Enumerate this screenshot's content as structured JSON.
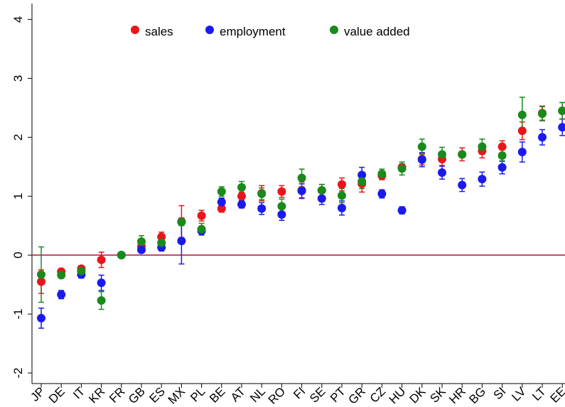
{
  "chart_data": {
    "type": "errorbar-scatter",
    "categories": [
      "JP",
      "DE",
      "IT",
      "KR",
      "FR",
      "GB",
      "ES",
      "MX",
      "PL",
      "BE",
      "AT",
      "NL",
      "RO",
      "FI",
      "SE",
      "PT",
      "GR",
      "CZ",
      "HU",
      "DK",
      "SK",
      "HR",
      "BG",
      "SI",
      "LV",
      "LT",
      "EE"
    ],
    "series": [
      {
        "name": "sales",
        "color": "#e8161b",
        "values": [
          -0.45,
          -0.28,
          -0.23,
          -0.08,
          0,
          0.15,
          0.31,
          0.57,
          0.67,
          0.79,
          1.0,
          1.05,
          1.08,
          1.1,
          1.1,
          1.2,
          1.21,
          1.35,
          1.49,
          1.63,
          1.63,
          1.71,
          1.77,
          1.84,
          2.11,
          2.41,
          2.45
        ],
        "errors": [
          0.2,
          0.05,
          0.05,
          0.13,
          0,
          0.05,
          0.08,
          0.27,
          0.09,
          0.06,
          0.07,
          0.13,
          0.1,
          0.14,
          0.1,
          0.11,
          0.14,
          0.07,
          0.06,
          0.1,
          0.11,
          0.11,
          0.12,
          0.1,
          0.15,
          0.12,
          0.14
        ]
      },
      {
        "name": "employment",
        "color": "#1a1aee",
        "values": [
          -1.07,
          -0.67,
          -0.33,
          -0.47,
          0,
          0.09,
          0.13,
          0.24,
          0.41,
          0.9,
          0.86,
          0.79,
          0.69,
          1.09,
          0.96,
          0.8,
          1.36,
          1.04,
          0.76,
          1.62,
          1.4,
          1.19,
          1.29,
          1.49,
          1.75,
          2.0,
          2.17
        ],
        "errors": [
          0.17,
          0.07,
          0.06,
          0.13,
          0,
          0.05,
          0.06,
          0.39,
          0.07,
          0.07,
          0.06,
          0.1,
          0.1,
          0.12,
          0.1,
          0.12,
          0.13,
          0.07,
          0.06,
          0.12,
          0.11,
          0.11,
          0.12,
          0.11,
          0.17,
          0.13,
          0.14
        ]
      },
      {
        "name": "value added",
        "color": "#1a8a1a",
        "values": [
          -0.33,
          -0.34,
          -0.27,
          -0.77,
          0,
          0.23,
          0.21,
          0.56,
          0.44,
          1.08,
          1.15,
          1.04,
          0.83,
          1.31,
          1.1,
          1.01,
          1.25,
          1.38,
          1.47,
          1.84,
          1.71,
          1.71,
          1.84,
          1.69,
          2.38,
          2.4,
          2.45
        ],
        "errors": [
          0.47,
          0.05,
          0.05,
          0.15,
          0,
          0.1,
          0.06,
          0.06,
          0.1,
          0.08,
          0.1,
          0.1,
          0.12,
          0.15,
          0.1,
          0.12,
          0.12,
          0.08,
          0.11,
          0.13,
          0.12,
          0.05,
          0.13,
          0.1,
          0.3,
          0.12,
          0.14
        ]
      }
    ],
    "ylim": [
      -2.18,
      4.27
    ],
    "yticks": [
      -2,
      -1,
      0,
      1,
      2,
      3,
      4
    ],
    "reference_line": {
      "value": 0,
      "color": "#b0103a"
    },
    "legend": "top"
  }
}
